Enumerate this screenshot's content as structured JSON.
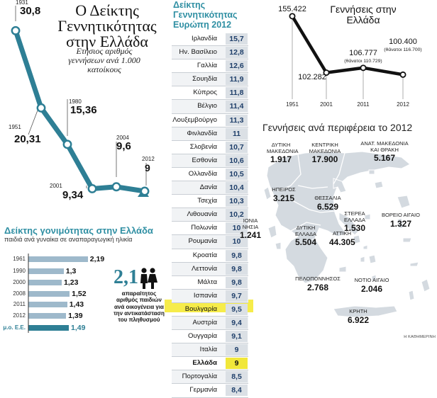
{
  "birthrate_chart": {
    "title": "Ο Δείκτης Γεννητικότητας στην Ελλάδα",
    "subtitle": "Ετήσιος αριθμός γεννήσεων ανά 1.000 κατοίκους"
  },
  "europe_table": {
    "title": "Δείκτης Γεννητικότητας Ευρώπη 2012",
    "highlight_color": "#f1e73a"
  },
  "births_chart": {
    "title": "Γεννήσεις στην Ελλάδα",
    "notes": [
      "(θάνατοι 110.729)",
      "(θάνατοι 116.700)"
    ]
  },
  "fertility_chart": {
    "title": "Δείκτης γονιμότητας στην Ελλάδα",
    "subtitle": "παιδιά ανά γυναίκα σε αναπαραγωγική ηλικία",
    "callout_value": "2,1",
    "callout_text": "απαραίτητος αριθμός παιδιών ανά οικογένεια για την αντικατάσταση του πληθυσμού"
  },
  "map": {
    "title": "Γεννήσεις ανά περιφέρεια το 2012"
  },
  "credit": "Η ΚΑΘΗΜΕΡΙΝΗ",
  "chart_data": [
    {
      "type": "line",
      "title": "Ο Δείκτης Γεννητικότητας στην Ελλάδα",
      "x": [
        "1931",
        "1951",
        "1980",
        "2001",
        "2004",
        "2012"
      ],
      "values": [
        30.8,
        20.31,
        15.36,
        9.34,
        9.6,
        9
      ],
      "labels": [
        "30,8",
        "20,31",
        "15,36",
        "9,34",
        "9,6",
        "9"
      ],
      "color": "#2e7f95"
    },
    {
      "type": "table",
      "title": "Δείκτης Γεννητικότητας Ευρώπη 2012",
      "rows": [
        {
          "country": "Ιρλανδία",
          "value": "15,7"
        },
        {
          "country": "Ην. Βασίλειο",
          "value": "12,8"
        },
        {
          "country": "Γαλλία",
          "value": "12,6"
        },
        {
          "country": "Σουηδία",
          "value": "11,9"
        },
        {
          "country": "Κύπρος",
          "value": "11,8"
        },
        {
          "country": "Βέλγιο",
          "value": "11,4"
        },
        {
          "country": "Λουξεμβούργο",
          "value": "11,3"
        },
        {
          "country": "Φινλανδία",
          "value": "11"
        },
        {
          "country": "Σλοβενία",
          "value": "10,7"
        },
        {
          "country": "Εσθονία",
          "value": "10,6"
        },
        {
          "country": "Ολλανδία",
          "value": "10,5"
        },
        {
          "country": "Δανία",
          "value": "10,4"
        },
        {
          "country": "Τσεχία",
          "value": "10,3"
        },
        {
          "country": "Λιθουανία",
          "value": "10,2"
        },
        {
          "country": "Πολωνία",
          "value": "10"
        },
        {
          "country": "Ρουμανία",
          "value": "10"
        },
        {
          "country": "Κροατία",
          "value": "9,8"
        },
        {
          "country": "Λεττονία",
          "value": "9,8"
        },
        {
          "country": "Μάλτα",
          "value": "9,8"
        },
        {
          "country": "Ισπανία",
          "value": "9,7"
        },
        {
          "country": "Βουλγαρία",
          "value": "9,5"
        },
        {
          "country": "Αυστρία",
          "value": "9,4"
        },
        {
          "country": "Ουγγαρία",
          "value": "9,1"
        },
        {
          "country": "Ιταλία",
          "value": "9"
        },
        {
          "country": "Ελλάδα",
          "value": "9",
          "highlight": true
        },
        {
          "country": "Πορτογαλία",
          "value": "8,5"
        },
        {
          "country": "Γερμανία",
          "value": "8,4"
        }
      ]
    },
    {
      "type": "line",
      "title": "Γεννήσεις στην Ελλάδα",
      "x": [
        "1951",
        "2001",
        "2011",
        "2012"
      ],
      "values": [
        155422,
        102282,
        106777,
        100400
      ],
      "labels": [
        "155.422",
        "102.282",
        "106.777",
        "100.400"
      ],
      "color": "#111111"
    },
    {
      "type": "bar",
      "title": "Δείκτης γονιμότητας στην Ελλάδα",
      "categories": [
        "1961",
        "1990",
        "2000",
        "2008",
        "2011",
        "2012",
        "μ.ο. Ε.Ε."
      ],
      "values": [
        2.19,
        1.3,
        1.23,
        1.52,
        1.43,
        1.39,
        1.49
      ],
      "labels": [
        "2,19",
        "1,3",
        "1,23",
        "1,52",
        "1,43",
        "1,39",
        "1,49"
      ],
      "xlim": [
        0,
        2.3
      ],
      "bar_color": "#9eb9cb",
      "highlight_color": "#2e7f95"
    },
    {
      "type": "table",
      "title": "Γεννήσεις ανά περιφέρεια το 2012",
      "regions": [
        {
          "name": "ΔΥΤΙΚΗ ΜΑΚΕΔΟΝΙΑ",
          "value": "1.917"
        },
        {
          "name": "ΚΕΝΤΡΙΚΗ ΜΑΚΕΔΟΝΙΑ",
          "value": "17.900"
        },
        {
          "name": "ΑΝΑΤ. ΜΑΚΕΔΟΝΙΑ ΚΑΙ ΘΡΑΚΗ",
          "value": "5.167"
        },
        {
          "name": "ΗΠΕΙΡΟΣ",
          "value": "3.215"
        },
        {
          "name": "ΘΕΣΣΑΛΙΑ",
          "value": "6.529"
        },
        {
          "name": "ΙΟΝΙΑ ΝΗΣΙΑ",
          "value": "1.241"
        },
        {
          "name": "ΣΤΕΡΕΑ ΕΛΛΑΔΑ",
          "value": "1.530"
        },
        {
          "name": "ΒΟΡΕΙΟ ΑΙΓΑΙΟ",
          "value": "1.327"
        },
        {
          "name": "ΔΥΤΙΚΗ ΕΛΛΑΔΑ",
          "value": "5.504"
        },
        {
          "name": "ΑΤΤΙΚΗ",
          "value": "44.305"
        },
        {
          "name": "ΠΕΛΟΠΟΝΝΗΣΟΣ",
          "value": "2.768"
        },
        {
          "name": "ΝΟΤΙΟ ΑΙΓΑΙΟ",
          "value": "2.046"
        },
        {
          "name": "ΚΡΗΤΗ",
          "value": "6.922"
        }
      ]
    }
  ]
}
